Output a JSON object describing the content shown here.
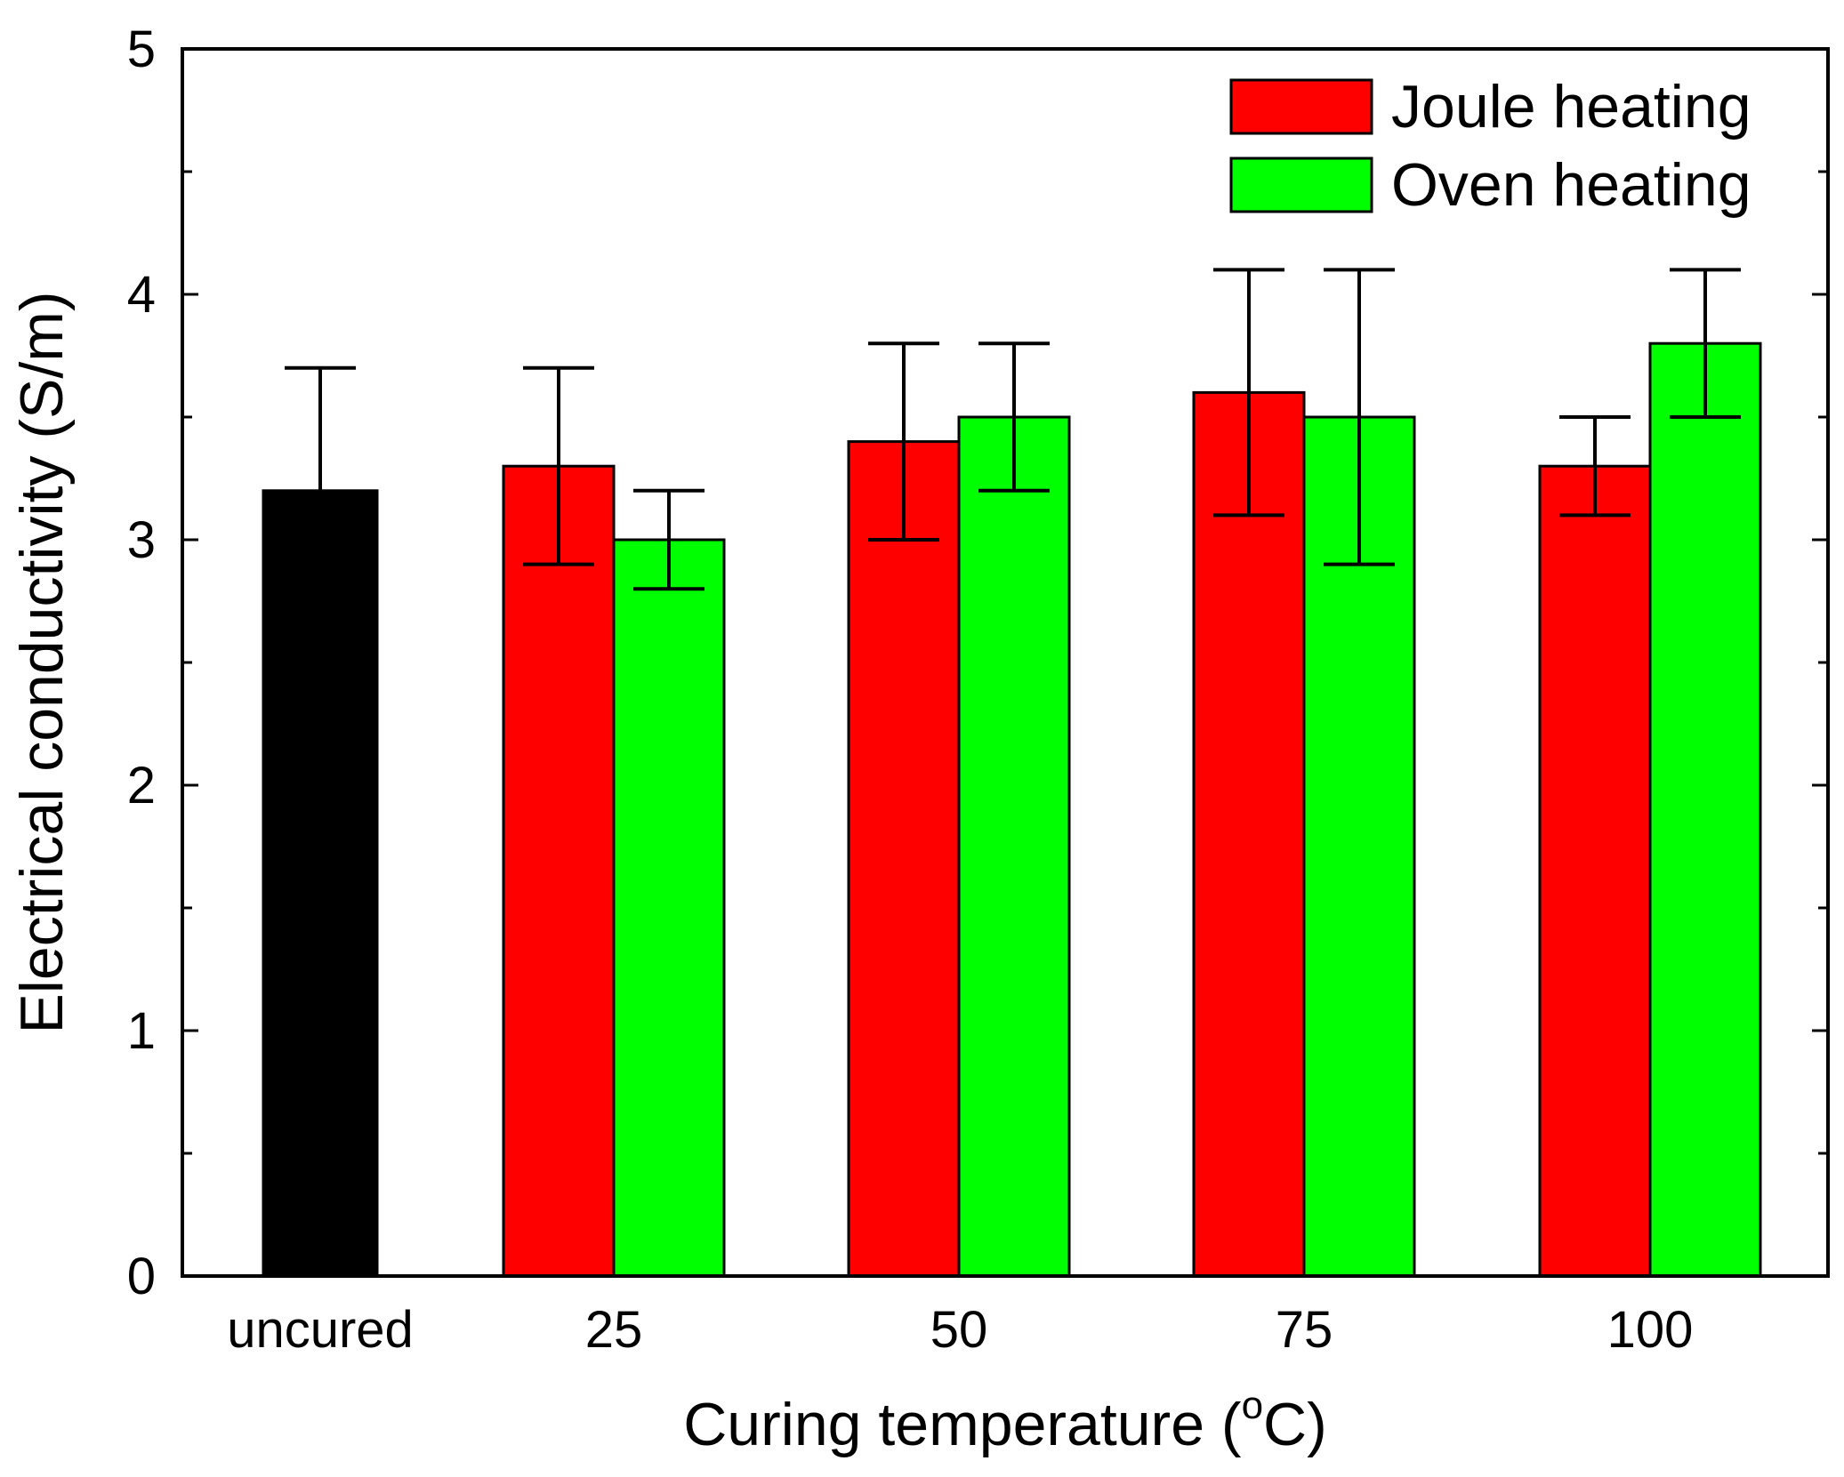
{
  "chart_data": {
    "type": "bar",
    "title": "",
    "xlabel": "Curing temperature (",
    "xlabel_degree": "o",
    "xlabel_unit": "C)",
    "ylabel": "Electrical conductivity (S/m)",
    "ylim": [
      0,
      5
    ],
    "yticks": [
      0,
      1,
      2,
      3,
      4,
      5
    ],
    "yticks_minor": [
      0.5,
      1.5,
      2.5,
      3.5,
      4.5
    ],
    "categories": [
      "uncured",
      "25",
      "50",
      "75",
      "100"
    ],
    "series": [
      {
        "name": "Uncured",
        "color": "#000000",
        "in_legend": false,
        "values": [
          3.2,
          null,
          null,
          null,
          null
        ],
        "err_upper": [
          3.7,
          null,
          null,
          null,
          null
        ],
        "err_lower": [
          3.2,
          null,
          null,
          null,
          null
        ]
      },
      {
        "name": "Joule heating",
        "color": "#ff0000",
        "in_legend": true,
        "values": [
          null,
          3.3,
          3.4,
          3.6,
          3.3
        ],
        "err_upper": [
          null,
          3.7,
          3.8,
          4.1,
          3.5
        ],
        "err_lower": [
          null,
          2.9,
          3.0,
          3.1,
          3.1
        ]
      },
      {
        "name": "Oven heating",
        "color": "#00ff00",
        "in_legend": true,
        "values": [
          null,
          3.0,
          3.5,
          3.5,
          3.8
        ],
        "err_upper": [
          null,
          3.2,
          3.8,
          4.1,
          4.1
        ],
        "err_lower": [
          null,
          2.8,
          3.2,
          2.9,
          3.5
        ]
      }
    ],
    "legend_position": "top-right",
    "grid": false
  }
}
